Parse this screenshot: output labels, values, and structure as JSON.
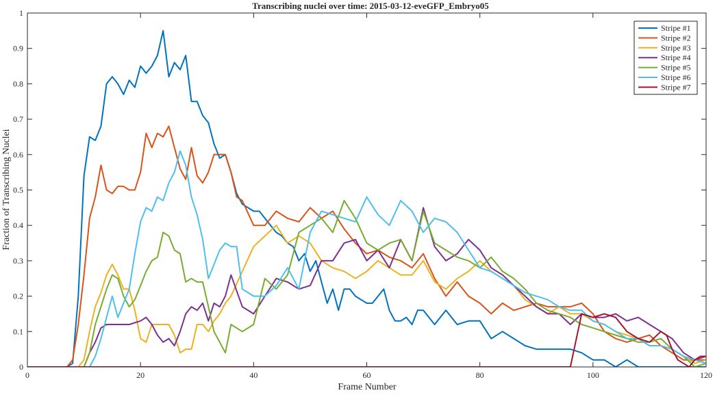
{
  "chart_data": {
    "type": "line",
    "title": "Transcribing nuclei over time: 2015-03-12-eveGFP_Embryo05",
    "xlabel": "Frame Number",
    "ylabel": "Fraction of Transcribing Nuclei",
    "xlim": [
      0,
      120
    ],
    "ylim": [
      0,
      1
    ],
    "xticks": [
      0,
      20,
      40,
      60,
      80,
      100,
      120
    ],
    "yticks": [
      0,
      0.1,
      0.2,
      0.3,
      0.4,
      0.5,
      0.6,
      0.7,
      0.8,
      0.9,
      1
    ],
    "xtick_labels": [
      "0",
      "20",
      "40",
      "60",
      "80",
      "100",
      "120"
    ],
    "ytick_labels": [
      "0",
      "0.1",
      "0.2",
      "0.3",
      "0.4",
      "0.5",
      "0.6",
      "0.7",
      "0.8",
      "0.9",
      "1"
    ],
    "grid": false,
    "legend_position": "top-right",
    "series": [
      {
        "name": "Stripe #1",
        "color": "#0072BD",
        "x": [
          0,
          7,
          8,
          9,
          10,
          11,
          12,
          13,
          14,
          15,
          16,
          17,
          18,
          19,
          20,
          21,
          22,
          23,
          24,
          25,
          26,
          27,
          28,
          29,
          30,
          31,
          32,
          33,
          34,
          35,
          36,
          37,
          38,
          39,
          40,
          41,
          42,
          43,
          44,
          45,
          46,
          47,
          48,
          49,
          50,
          51,
          52,
          53,
          54,
          55,
          56,
          57,
          58,
          59,
          60,
          61,
          62,
          63,
          64,
          65,
          66,
          67,
          68,
          69,
          70,
          72,
          74,
          76,
          78,
          80,
          82,
          84,
          86,
          88,
          90,
          92,
          94,
          96,
          98,
          100,
          102,
          104,
          106,
          108,
          110,
          112,
          114,
          116,
          118,
          120
        ],
        "y": [
          0,
          0,
          0.01,
          0.2,
          0.54,
          0.65,
          0.64,
          0.68,
          0.8,
          0.82,
          0.8,
          0.77,
          0.81,
          0.79,
          0.85,
          0.83,
          0.85,
          0.88,
          0.95,
          0.82,
          0.86,
          0.84,
          0.88,
          0.75,
          0.75,
          0.71,
          0.69,
          0.63,
          0.59,
          0.6,
          0.55,
          0.49,
          0.46,
          0.45,
          0.44,
          0.44,
          0.42,
          0.4,
          0.38,
          0.37,
          0.35,
          0.34,
          0.3,
          0.32,
          0.27,
          0.3,
          0.24,
          0.18,
          0.22,
          0.16,
          0.22,
          0.22,
          0.2,
          0.19,
          0.18,
          0.18,
          0.2,
          0.22,
          0.16,
          0.13,
          0.13,
          0.14,
          0.12,
          0.16,
          0.16,
          0.12,
          0.16,
          0.12,
          0.13,
          0.13,
          0.08,
          0.1,
          0.08,
          0.06,
          0.05,
          0.05,
          0.05,
          0.05,
          0.04,
          0.02,
          0.02,
          0,
          0.02,
          0,
          0,
          0,
          0,
          0,
          0,
          0
        ]
      },
      {
        "name": "Stripe #2",
        "color": "#D95319",
        "x": [
          0,
          7,
          8,
          9,
          10,
          11,
          12,
          13,
          14,
          15,
          16,
          17,
          18,
          19,
          20,
          21,
          22,
          23,
          24,
          25,
          26,
          27,
          28,
          29,
          30,
          31,
          32,
          33,
          34,
          35,
          36,
          37,
          38,
          40,
          42,
          44,
          46,
          48,
          50,
          52,
          54,
          56,
          58,
          60,
          62,
          64,
          66,
          68,
          70,
          72,
          74,
          76,
          78,
          80,
          82,
          84,
          86,
          88,
          90,
          92,
          94,
          96,
          98,
          100,
          102,
          104,
          106,
          108,
          110,
          112,
          114,
          116,
          118,
          120
        ],
        "y": [
          0,
          0,
          0.02,
          0.12,
          0.26,
          0.42,
          0.48,
          0.57,
          0.5,
          0.49,
          0.51,
          0.51,
          0.5,
          0.5,
          0.55,
          0.66,
          0.62,
          0.66,
          0.65,
          0.68,
          0.62,
          0.56,
          0.53,
          0.62,
          0.54,
          0.52,
          0.55,
          0.6,
          0.6,
          0.6,
          0.55,
          0.48,
          0.47,
          0.4,
          0.4,
          0.44,
          0.42,
          0.41,
          0.45,
          0.42,
          0.44,
          0.39,
          0.35,
          0.32,
          0.33,
          0.31,
          0.3,
          0.28,
          0.32,
          0.25,
          0.2,
          0.24,
          0.2,
          0.18,
          0.15,
          0.18,
          0.16,
          0.17,
          0.18,
          0.17,
          0.17,
          0.17,
          0.18,
          0.15,
          0.1,
          0.08,
          0.07,
          0.08,
          0.09,
          0.06,
          0.04,
          0.02,
          0.02,
          0.02
        ]
      },
      {
        "name": "Stripe #3",
        "color": "#EDB120",
        "x": [
          0,
          9,
          10,
          11,
          12,
          13,
          14,
          15,
          16,
          17,
          18,
          19,
          20,
          21,
          22,
          23,
          24,
          25,
          26,
          27,
          28,
          29,
          30,
          31,
          32,
          33,
          34,
          35,
          36,
          38,
          40,
          42,
          44,
          46,
          48,
          50,
          52,
          54,
          56,
          58,
          60,
          62,
          64,
          66,
          68,
          70,
          72,
          74,
          76,
          78,
          80,
          82,
          84,
          86,
          88,
          90,
          92,
          94,
          96,
          98,
          100,
          102,
          104,
          106,
          108,
          110,
          112,
          114,
          116,
          118,
          120
        ],
        "y": [
          0,
          0,
          0.02,
          0.1,
          0.17,
          0.21,
          0.26,
          0.29,
          0.26,
          0.22,
          0.22,
          0.16,
          0.08,
          0.07,
          0.12,
          0.12,
          0.12,
          0.12,
          0.09,
          0.04,
          0.05,
          0.05,
          0.12,
          0.12,
          0.1,
          0.13,
          0.15,
          0.18,
          0.2,
          0.27,
          0.34,
          0.37,
          0.4,
          0.35,
          0.37,
          0.35,
          0.3,
          0.28,
          0.27,
          0.25,
          0.27,
          0.3,
          0.28,
          0.26,
          0.26,
          0.3,
          0.24,
          0.22,
          0.25,
          0.27,
          0.3,
          0.27,
          0.25,
          0.23,
          0.19,
          0.17,
          0.15,
          0.17,
          0.15,
          0.15,
          0.13,
          0.12,
          0.1,
          0.09,
          0.08,
          0.06,
          0.06,
          0.05,
          0.03,
          0.01,
          0.02
        ]
      },
      {
        "name": "Stripe #4",
        "color": "#7E2F8E",
        "x": [
          0,
          10,
          11,
          12,
          13,
          14,
          16,
          18,
          20,
          21,
          22,
          23,
          24,
          25,
          26,
          27,
          28,
          29,
          30,
          31,
          32,
          33,
          34,
          35,
          36,
          38,
          40,
          42,
          44,
          46,
          48,
          50,
          52,
          54,
          56,
          58,
          60,
          62,
          64,
          66,
          68,
          70,
          72,
          74,
          76,
          78,
          80,
          82,
          84,
          86,
          88,
          90,
          92,
          94,
          96,
          98,
          100,
          102,
          104,
          106,
          108,
          110,
          112,
          114,
          116,
          118,
          120
        ],
        "y": [
          0,
          0,
          0.04,
          0.07,
          0.11,
          0.12,
          0.12,
          0.12,
          0.13,
          0.14,
          0.12,
          0.09,
          0.07,
          0.08,
          0.06,
          0.1,
          0.15,
          0.17,
          0.16,
          0.18,
          0.13,
          0.18,
          0.17,
          0.2,
          0.26,
          0.17,
          0.15,
          0.2,
          0.25,
          0.24,
          0.22,
          0.23,
          0.3,
          0.3,
          0.35,
          0.36,
          0.3,
          0.33,
          0.28,
          0.36,
          0.3,
          0.45,
          0.34,
          0.3,
          0.32,
          0.36,
          0.33,
          0.28,
          0.26,
          0.23,
          0.2,
          0.17,
          0.15,
          0.15,
          0.12,
          0.15,
          0.14,
          0.14,
          0.15,
          0.13,
          0.14,
          0.12,
          0.1,
          0.08,
          0.04,
          0.02,
          0.03
        ]
      },
      {
        "name": "Stripe #5",
        "color": "#77AC30",
        "x": [
          0,
          10,
          11,
          12,
          13,
          14,
          15,
          16,
          17,
          18,
          19,
          20,
          21,
          22,
          23,
          24,
          25,
          26,
          27,
          28,
          29,
          30,
          31,
          32,
          33,
          34,
          35,
          36,
          38,
          40,
          42,
          44,
          46,
          48,
          50,
          52,
          54,
          56,
          58,
          60,
          62,
          64,
          66,
          68,
          70,
          72,
          74,
          76,
          78,
          80,
          82,
          84,
          86,
          88,
          90,
          92,
          94,
          96,
          98,
          100,
          102,
          104,
          106,
          108,
          110,
          112,
          114,
          116,
          118,
          120
        ],
        "y": [
          0,
          0,
          0.04,
          0.12,
          0.17,
          0.22,
          0.26,
          0.25,
          0.2,
          0.17,
          0.19,
          0.23,
          0.27,
          0.3,
          0.31,
          0.38,
          0.37,
          0.33,
          0.32,
          0.24,
          0.25,
          0.24,
          0.24,
          0.17,
          0.1,
          0.07,
          0.04,
          0.12,
          0.1,
          0.12,
          0.25,
          0.22,
          0.26,
          0.38,
          0.4,
          0.42,
          0.38,
          0.47,
          0.42,
          0.35,
          0.33,
          0.35,
          0.36,
          0.3,
          0.44,
          0.35,
          0.33,
          0.31,
          0.3,
          0.28,
          0.31,
          0.27,
          0.25,
          0.22,
          0.18,
          0.16,
          0.15,
          0.14,
          0.12,
          0.11,
          0.1,
          0.09,
          0.08,
          0.07,
          0.07,
          0.08,
          0.05,
          0.03,
          0,
          0.01
        ]
      },
      {
        "name": "Stripe #6",
        "color": "#4DBEEE",
        "x": [
          0,
          11,
          12,
          13,
          14,
          15,
          16,
          17,
          18,
          19,
          20,
          21,
          22,
          23,
          24,
          25,
          26,
          27,
          28,
          29,
          30,
          31,
          32,
          33,
          34,
          35,
          36,
          37,
          38,
          39,
          40,
          42,
          44,
          46,
          48,
          50,
          52,
          54,
          56,
          58,
          60,
          62,
          64,
          66,
          68,
          70,
          72,
          74,
          76,
          78,
          80,
          82,
          84,
          86,
          88,
          90,
          92,
          94,
          96,
          98,
          100,
          102,
          104,
          106,
          108,
          110,
          112,
          114,
          116,
          118,
          120
        ],
        "y": [
          0,
          0,
          0.03,
          0.08,
          0.14,
          0.2,
          0.14,
          0.18,
          0.22,
          0.32,
          0.41,
          0.45,
          0.44,
          0.48,
          0.47,
          0.52,
          0.55,
          0.61,
          0.57,
          0.48,
          0.43,
          0.36,
          0.25,
          0.29,
          0.33,
          0.35,
          0.34,
          0.34,
          0.22,
          0.21,
          0.2,
          0.2,
          0.23,
          0.28,
          0.22,
          0.38,
          0.44,
          0.43,
          0.42,
          0.41,
          0.48,
          0.43,
          0.4,
          0.47,
          0.44,
          0.38,
          0.42,
          0.41,
          0.38,
          0.33,
          0.28,
          0.27,
          0.25,
          0.23,
          0.21,
          0.2,
          0.19,
          0.17,
          0.16,
          0.16,
          0.13,
          0.12,
          0.1,
          0.08,
          0.08,
          0.06,
          0.06,
          0.05,
          0.03,
          0.02,
          0.01
        ]
      },
      {
        "name": "Stripe #7",
        "color": "#A2142F",
        "x": [
          0,
          96,
          98,
          100,
          102,
          104,
          106,
          108,
          110,
          112,
          113,
          114,
          115,
          116,
          117,
          118,
          119,
          120
        ],
        "y": [
          0,
          0,
          0.15,
          0.14,
          0.15,
          0.14,
          0.1,
          0.08,
          0.07,
          0.1,
          0.09,
          0.05,
          0.02,
          0.01,
          0,
          0.02,
          0.03,
          0.03
        ]
      }
    ]
  }
}
